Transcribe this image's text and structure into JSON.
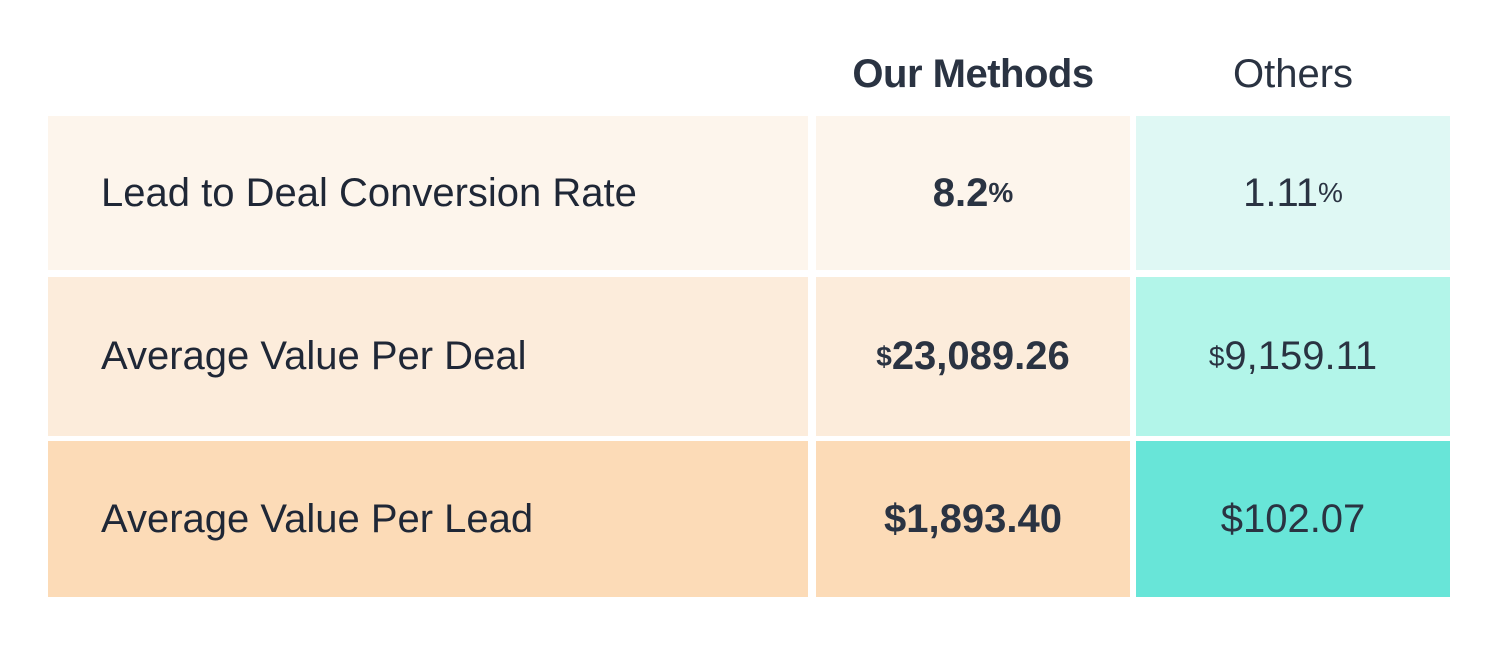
{
  "headers": {
    "ours": "Our Methods",
    "others": "Others"
  },
  "colors": {
    "row1_ours": "#fdf5ec",
    "row2_ours": "#fcecdb",
    "row3_ours": "#fcdbb7",
    "row1_others": "#dff8f4",
    "row2_others": "#b2f5e9",
    "row3_others": "#68e5d8",
    "text": "#2a3342"
  },
  "rows": [
    {
      "label": "Lead to Deal Conversion Rate",
      "ours": {
        "prefix": "",
        "number": "8.2",
        "suffix": "%"
      },
      "others": {
        "prefix": "",
        "number": "1.11",
        "suffix": "%"
      }
    },
    {
      "label": "Average Value Per Deal",
      "ours": {
        "prefix": "$",
        "number": "23,089.26",
        "suffix": ""
      },
      "others": {
        "prefix": "$",
        "number": "9,159.11",
        "suffix": ""
      }
    },
    {
      "label": "Average Value Per Lead",
      "ours": {
        "prefix": "$",
        "number": "1,893.40",
        "suffix": ""
      },
      "others": {
        "prefix": "$",
        "number": "102.07",
        "suffix": ""
      }
    }
  ]
}
